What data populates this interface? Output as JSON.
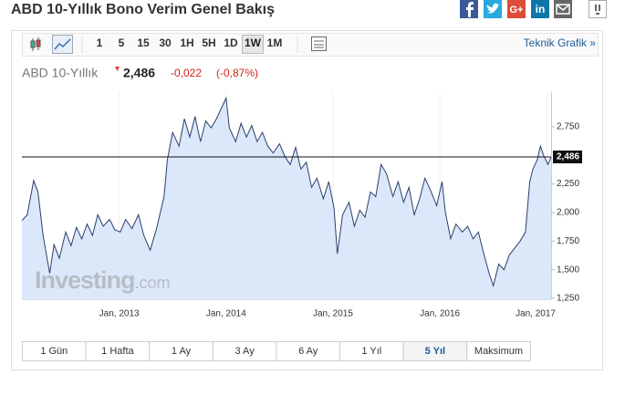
{
  "header": {
    "title": "ABD 10-Yıllık Bono Verim Genel Bakış",
    "share": [
      "G+",
      "in"
    ]
  },
  "toolbar": {
    "timeframes": [
      "1",
      "5",
      "15",
      "30",
      "1H",
      "5H",
      "1D",
      "1W",
      "1M"
    ],
    "active": 7,
    "link": "Teknik Grafik »"
  },
  "quote": {
    "name": "ABD 10-Yıllık",
    "price": "2,486",
    "change": "-0,022",
    "change_pct": "(-0,87%)"
  },
  "watermark": {
    "brand": "Investing",
    "suffix": ".com"
  },
  "ranges": {
    "labels": [
      "1 Gün",
      "1 Hafta",
      "1 Ay",
      "3 Ay",
      "6 Ay",
      "1 Yıl",
      "5 Yıl",
      "Maksimum"
    ],
    "active": 6
  },
  "chart_data": {
    "type": "area",
    "color": "#2c3e6b",
    "fill_color": "#dbe8fa",
    "x": [
      2012.09,
      2012.14,
      2012.2,
      2012.24,
      2012.29,
      2012.35,
      2012.39,
      2012.44,
      2012.5,
      2012.55,
      2012.6,
      2012.65,
      2012.7,
      2012.75,
      2012.8,
      2012.85,
      2012.91,
      2012.96,
      2013.01,
      2013.06,
      2013.12,
      2013.18,
      2013.23,
      2013.29,
      2013.35,
      2013.42,
      2013.45,
      2013.5,
      2013.56,
      2013.61,
      2013.66,
      2013.71,
      2013.76,
      2013.81,
      2013.86,
      2013.91,
      2013.97,
      2014.0,
      2014.03,
      2014.09,
      2014.14,
      2014.19,
      2014.24,
      2014.29,
      2014.34,
      2014.39,
      2014.44,
      2014.5,
      2014.55,
      2014.6,
      2014.65,
      2014.7,
      2014.75,
      2014.8,
      2014.85,
      2014.91,
      2014.96,
      2015.01,
      2015.04,
      2015.09,
      2015.15,
      2015.2,
      2015.25,
      2015.3,
      2015.35,
      2015.4,
      2015.45,
      2015.5,
      2015.56,
      2015.61,
      2015.66,
      2015.71,
      2015.76,
      2015.81,
      2015.86,
      2015.91,
      2015.97,
      2016.02,
      2016.05,
      2016.1,
      2016.15,
      2016.21,
      2016.26,
      2016.31,
      2016.36,
      2016.41,
      2016.46,
      2016.5,
      2016.55,
      2016.6,
      2016.65,
      2016.7,
      2016.75,
      2016.8,
      2016.84,
      2016.87,
      2016.91,
      2016.94,
      2016.97,
      2017.01,
      2017.04
    ],
    "values": [
      1.93,
      1.98,
      2.28,
      2.18,
      1.79,
      1.47,
      1.72,
      1.6,
      1.83,
      1.71,
      1.87,
      1.77,
      1.9,
      1.8,
      1.98,
      1.88,
      1.94,
      1.85,
      1.83,
      1.94,
      1.86,
      1.98,
      1.8,
      1.67,
      1.86,
      2.14,
      2.46,
      2.7,
      2.58,
      2.82,
      2.66,
      2.84,
      2.62,
      2.8,
      2.74,
      2.82,
      2.94,
      3.0,
      2.74,
      2.62,
      2.78,
      2.66,
      2.76,
      2.62,
      2.7,
      2.58,
      2.52,
      2.6,
      2.49,
      2.42,
      2.57,
      2.38,
      2.44,
      2.22,
      2.3,
      2.12,
      2.27,
      2.04,
      1.64,
      1.98,
      2.09,
      1.88,
      2.02,
      1.96,
      2.18,
      2.14,
      2.42,
      2.34,
      2.14,
      2.27,
      2.09,
      2.22,
      1.98,
      2.12,
      2.3,
      2.2,
      2.06,
      2.27,
      2.01,
      1.77,
      1.9,
      1.83,
      1.88,
      1.77,
      1.83,
      1.64,
      1.47,
      1.36,
      1.55,
      1.5,
      1.63,
      1.69,
      1.75,
      1.83,
      2.27,
      2.38,
      2.46,
      2.58,
      2.5,
      2.42,
      2.486
    ],
    "last": {
      "value": 2.486,
      "label": "2,486"
    },
    "xlim": [
      2012.09,
      2017.04
    ],
    "xticks": [
      {
        "value": 2013,
        "label": "Jan, 2013"
      },
      {
        "value": 2014,
        "label": "Jan, 2014"
      },
      {
        "value": 2015,
        "label": "Jan, 2015"
      },
      {
        "value": 2016,
        "label": "Jan, 2016"
      },
      {
        "value": 2017,
        "label": "Jan, 2017"
      }
    ],
    "ylim": [
      1.25,
      3.06
    ],
    "yticks": [
      {
        "value": 1.25,
        "label": "1,250"
      },
      {
        "value": 1.5,
        "label": "1,500"
      },
      {
        "value": 1.75,
        "label": "1,750"
      },
      {
        "value": 2,
        "label": "2,000"
      },
      {
        "value": 2.25,
        "label": "2,250"
      },
      {
        "value": 2.75,
        "label": "2,750"
      }
    ]
  }
}
